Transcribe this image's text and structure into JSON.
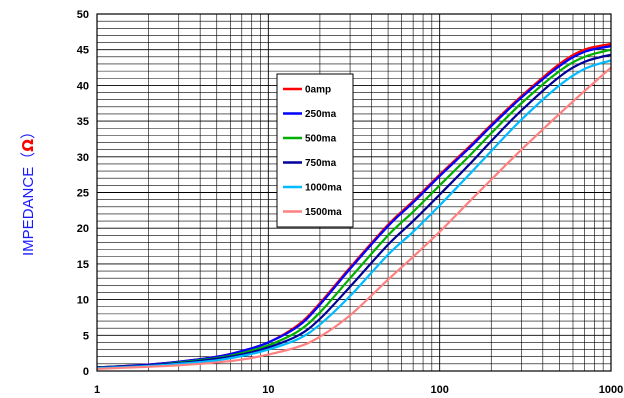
{
  "chart_data": {
    "type": "line",
    "x_scale": "log",
    "xlim": [
      1,
      1000
    ],
    "ylim": [
      0,
      50
    ],
    "grid": true,
    "legend_position": "upper-center",
    "ylabel": "IMPEDANCE",
    "ylabel_parts": [
      "IMPEDANCE",
      "（",
      "Ω",
      "）"
    ],
    "x_tick_labels": [
      "1",
      "10",
      "100",
      "1000"
    ],
    "x_ticks": [
      1,
      10,
      100,
      1000
    ],
    "y_ticks": [
      0,
      5,
      10,
      15,
      20,
      25,
      30,
      35,
      40,
      45,
      50
    ],
    "x": [
      1,
      2,
      3,
      5,
      7,
      10,
      15,
      20,
      30,
      50,
      70,
      100,
      150,
      200,
      300,
      500,
      700,
      1000
    ],
    "series": [
      {
        "name": "0amp",
        "color": "#ff0000",
        "values": [
          0.5,
          0.9,
          1.3,
          2.0,
          2.8,
          4.0,
          6.5,
          9.5,
          14.5,
          20.5,
          23.8,
          27.5,
          31.5,
          34.5,
          38.5,
          43.0,
          45.0,
          45.8
        ]
      },
      {
        "name": "250ma",
        "color": "#0000ff",
        "values": [
          0.5,
          0.9,
          1.3,
          2.0,
          2.8,
          4.0,
          6.3,
          9.3,
          14.3,
          20.3,
          23.6,
          27.3,
          31.3,
          34.3,
          38.3,
          42.7,
          44.7,
          45.5
        ]
      },
      {
        "name": "500ma",
        "color": "#00b000",
        "values": [
          0.5,
          0.8,
          1.2,
          1.8,
          2.5,
          3.6,
          5.6,
          8.2,
          13.0,
          19.0,
          22.3,
          26.0,
          30.2,
          33.3,
          37.5,
          42.0,
          44.0,
          45.0
        ]
      },
      {
        "name": "750ma",
        "color": "#000099",
        "values": [
          0.5,
          0.8,
          1.1,
          1.7,
          2.3,
          3.3,
          5.0,
          7.3,
          11.8,
          17.7,
          21.0,
          24.7,
          29.0,
          32.2,
          36.5,
          41.2,
          43.3,
          44.3
        ]
      },
      {
        "name": "1000ma",
        "color": "#00bbff",
        "values": [
          0.4,
          0.7,
          1.0,
          1.5,
          2.1,
          3.0,
          4.5,
          6.5,
          10.5,
          16.3,
          19.5,
          23.2,
          27.6,
          30.8,
          35.2,
          40.0,
          42.3,
          43.5
        ]
      },
      {
        "name": "1500ma",
        "color": "#ff8080",
        "values": [
          0.3,
          0.6,
          0.8,
          1.2,
          1.6,
          2.3,
          3.4,
          4.8,
          7.8,
          12.8,
          16.0,
          19.5,
          23.8,
          26.8,
          31.0,
          36.0,
          39.2,
          42.5
        ]
      }
    ]
  }
}
